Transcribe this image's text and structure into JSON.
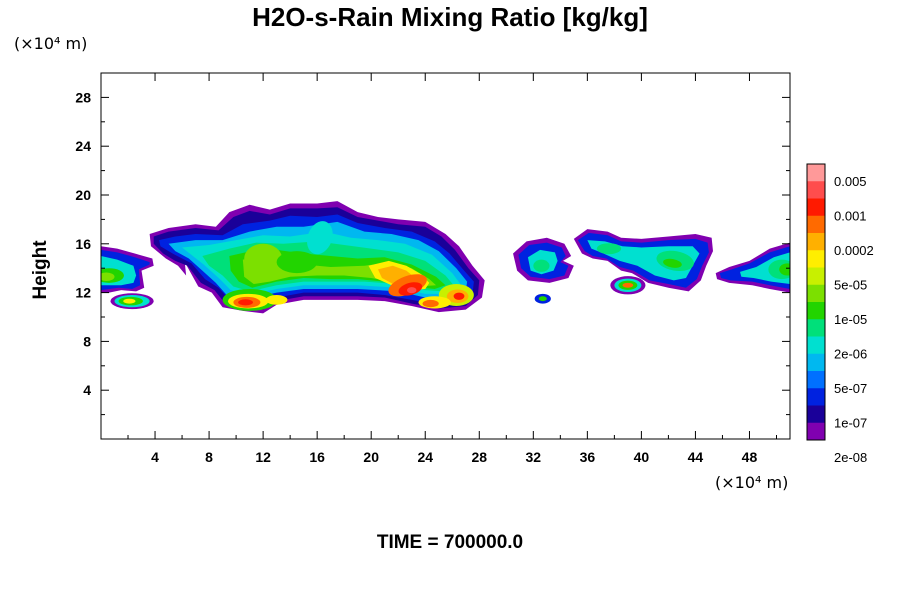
{
  "chart_data": {
    "type": "contour",
    "title": "H2O-s-Rain Mixing Ratio [kg/kg]",
    "xlabel": "",
    "ylabel": "Height",
    "x_unit": "(×10⁴ m)",
    "y_unit": "(×10⁴ m)",
    "xlim": [
      0,
      51
    ],
    "ylim": [
      0,
      30
    ],
    "x_ticks": [
      4,
      8,
      12,
      16,
      20,
      24,
      28,
      32,
      36,
      40,
      44,
      48
    ],
    "y_ticks": [
      4,
      8,
      12,
      16,
      20,
      24,
      28
    ],
    "time_label": "TIME = 700000.0",
    "colorbar": {
      "labels": [
        "0.005",
        "0.001",
        "0.0002",
        "5e-05",
        "1e-05",
        "2e-06",
        "5e-07",
        "1e-07",
        "2e-08"
      ],
      "colors": [
        "#ff9999",
        "#ff4d4d",
        "#ff1a00",
        "#ff6a00",
        "#ffb000",
        "#ffee00",
        "#c8f000",
        "#7ce000",
        "#22d400",
        "#00e07a",
        "#00e0d0",
        "#00b8f0",
        "#0070ff",
        "#0022e0",
        "#1a0099",
        "#8000b0"
      ]
    },
    "regions": [
      {
        "name": "left-edge-cloud",
        "x_range": [
          0,
          4
        ],
        "y_range": [
          12,
          15.5
        ],
        "max_level": "1e-05"
      },
      {
        "name": "main-cluster",
        "x_range": [
          3.5,
          28.5
        ],
        "y_range": [
          10.2,
          19.5
        ],
        "max_level": "0.001"
      },
      {
        "name": "core-24",
        "x_range": [
          21,
          27
        ],
        "y_range": [
          11,
          14.5
        ],
        "max_level": "0.001"
      },
      {
        "name": "mid-cloud-33",
        "x_range": [
          30.5,
          35
        ],
        "y_range": [
          12.8,
          16.5
        ],
        "max_level": "2e-06"
      },
      {
        "name": "right-cloud-42",
        "x_range": [
          35,
          45
        ],
        "y_range": [
          12,
          17
        ],
        "max_level": "1e-05"
      },
      {
        "name": "right-edge-cloud",
        "x_range": [
          45.5,
          51
        ],
        "y_range": [
          12.2,
          16
        ],
        "max_level": "1e-05"
      }
    ]
  }
}
